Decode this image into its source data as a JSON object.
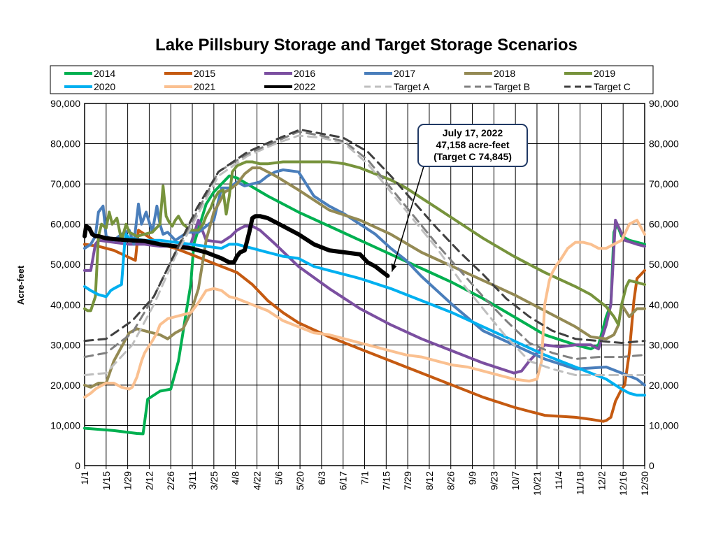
{
  "chart_data": {
    "type": "line",
    "title": "Lake Pillsbury Storage and Target Storage Scenarios",
    "ylabel": "Acre-feet",
    "xlabel": "",
    "ylim": [
      0,
      90000
    ],
    "y_ticks": [
      0,
      10000,
      20000,
      30000,
      40000,
      50000,
      60000,
      70000,
      80000,
      90000
    ],
    "y_tick_labels": [
      "0",
      "10,000",
      "20,000",
      "30,000",
      "40,000",
      "50,000",
      "60,000",
      "70,000",
      "80,000",
      "90,000"
    ],
    "x_unit": "day of year",
    "xlim": [
      1,
      365
    ],
    "x_ticks": [
      1,
      15,
      29,
      43,
      57,
      71,
      85,
      99,
      113,
      127,
      141,
      155,
      169,
      183,
      197,
      211,
      225,
      239,
      253,
      267,
      281,
      295,
      309,
      323,
      337,
      351,
      365
    ],
    "x_tick_labels": [
      "1/1",
      "1/15",
      "1/29",
      "2/12",
      "2/26",
      "3/11",
      "3/25",
      "4/8",
      "4/22",
      "5/6",
      "5/20",
      "6/3",
      "6/17",
      "7/1",
      "7/15",
      "7/29",
      "8/12",
      "8/26",
      "9/9",
      "9/23",
      "10/7",
      "10/21",
      "11/4",
      "11/18",
      "12/2",
      "12/16",
      "12/30"
    ],
    "grid": true,
    "legend_position": "top",
    "legend_columns": 6,
    "series": [
      {
        "name": "2014",
        "color": "#00b050",
        "dash": "solid",
        "width": 4,
        "x": [
          1,
          20,
          35,
          39,
          42,
          50,
          57,
          62,
          67,
          70,
          72,
          80,
          85,
          95,
          100,
          120,
          140,
          160,
          180,
          200,
          220,
          240,
          260,
          280,
          300,
          320,
          330,
          335,
          340,
          343,
          345,
          347,
          350,
          355,
          360,
          365
        ],
        "y": [
          9300,
          8700,
          8000,
          7900,
          16500,
          18500,
          19000,
          26000,
          38000,
          45000,
          55000,
          65000,
          68000,
          72000,
          71500,
          67000,
          63000,
          59500,
          56000,
          52500,
          49000,
          45500,
          41500,
          37000,
          32500,
          30000,
          29000,
          30000,
          37000,
          40000,
          58000,
          60000,
          57000,
          56000,
          55500,
          55000
        ]
      },
      {
        "name": "2015",
        "color": "#c55a11",
        "dash": "solid",
        "width": 4,
        "x": [
          1,
          10,
          20,
          34,
          36,
          50,
          60,
          70,
          80,
          90,
          100,
          110,
          120,
          130,
          140,
          160,
          180,
          200,
          220,
          240,
          260,
          280,
          300,
          320,
          330,
          338,
          340,
          343,
          346,
          350,
          352,
          355,
          358,
          360,
          365
        ],
        "y": [
          55000,
          54500,
          53500,
          51000,
          58500,
          55000,
          54000,
          52500,
          51000,
          49500,
          48000,
          45000,
          41000,
          38000,
          35500,
          32000,
          29000,
          26000,
          23000,
          20000,
          17000,
          14500,
          12500,
          12000,
          11500,
          11000,
          11200,
          12000,
          16000,
          19000,
          20000,
          28000,
          41000,
          46500,
          48500
        ]
      },
      {
        "name": "2016",
        "color": "#7b4fa0",
        "dash": "solid",
        "width": 4,
        "x": [
          1,
          5,
          8,
          10,
          20,
          30,
          40,
          50,
          60,
          70,
          75,
          80,
          90,
          96,
          100,
          105,
          110,
          115,
          125,
          140,
          160,
          180,
          200,
          220,
          240,
          260,
          280,
          285,
          290,
          300,
          310,
          320,
          330,
          335,
          340,
          343,
          346,
          352,
          360,
          365
        ],
        "y": [
          48500,
          48500,
          55000,
          56000,
          55500,
          55000,
          55000,
          54500,
          54500,
          55000,
          61000,
          56000,
          55500,
          57000,
          58500,
          59500,
          59500,
          58500,
          55000,
          49500,
          44000,
          39000,
          35000,
          31500,
          28500,
          25500,
          23000,
          23500,
          26000,
          30000,
          29500,
          30000,
          30000,
          29000,
          35000,
          40000,
          61000,
          56000,
          55000,
          54500
        ]
      },
      {
        "name": "2017",
        "color": "#4a7ebb",
        "dash": "solid",
        "width": 4,
        "x": [
          1,
          5,
          8,
          10,
          13,
          15,
          20,
          25,
          30,
          33,
          36,
          38,
          41,
          45,
          48,
          50,
          52,
          55,
          60,
          68,
          75,
          85,
          90,
          95,
          100,
          105,
          110,
          115,
          120,
          125,
          130,
          140,
          150,
          160,
          170,
          180,
          190,
          200,
          210,
          220,
          240,
          260,
          280,
          300,
          320,
          340,
          350,
          360,
          365
        ],
        "y": [
          54000,
          55000,
          57000,
          63000,
          64500,
          57000,
          56000,
          57500,
          58500,
          55000,
          65000,
          60000,
          63000,
          58000,
          64500,
          60000,
          57500,
          58000,
          56000,
          58000,
          58000,
          61000,
          69000,
          69000,
          70500,
          69500,
          70000,
          70500,
          72000,
          73000,
          73500,
          73000,
          67000,
          64500,
          62500,
          60000,
          57500,
          54000,
          51000,
          47000,
          40000,
          33500,
          30000,
          26500,
          24000,
          24500,
          23000,
          21500,
          20000
        ]
      },
      {
        "name": "2018",
        "color": "#948a54",
        "dash": "solid",
        "width": 4,
        "x": [
          1,
          5,
          10,
          15,
          20,
          25,
          30,
          35,
          40,
          45,
          50,
          55,
          60,
          65,
          70,
          75,
          80,
          85,
          88,
          92,
          95,
          100,
          105,
          110,
          115,
          125,
          140,
          160,
          180,
          200,
          220,
          240,
          260,
          280,
          300,
          320,
          330,
          340,
          345,
          348,
          350,
          355,
          360,
          365
        ],
        "y": [
          20000,
          19500,
          20500,
          20500,
          26000,
          29500,
          33000,
          34000,
          33500,
          33000,
          32500,
          31500,
          33000,
          34000,
          38000,
          44000,
          56000,
          63000,
          65000,
          68000,
          68500,
          70000,
          72500,
          74000,
          74000,
          72000,
          68500,
          63500,
          61000,
          57500,
          53000,
          49500,
          46000,
          42500,
          38500,
          34500,
          32000,
          31500,
          32500,
          35000,
          40000,
          37000,
          39000,
          39000
        ]
      },
      {
        "name": "2019",
        "color": "#77933c",
        "dash": "solid",
        "width": 4,
        "x": [
          1,
          3,
          5,
          8,
          10,
          12,
          15,
          17,
          19,
          22,
          25,
          28,
          30,
          35,
          40,
          45,
          50,
          52,
          54,
          56,
          58,
          60,
          62,
          65,
          70,
          75,
          78,
          80,
          83,
          85,
          88,
          91,
          93,
          95,
          97,
          100,
          103,
          106,
          110,
          115,
          120,
          130,
          140,
          150,
          160,
          170,
          180,
          190,
          200,
          210,
          220,
          230,
          240,
          260,
          280,
          300,
          320,
          330,
          340,
          345,
          348,
          350,
          353,
          355,
          360,
          365
        ],
        "y": [
          39000,
          38500,
          38500,
          42000,
          57000,
          60000,
          59000,
          63000,
          60000,
          61500,
          56000,
          60000,
          58000,
          57000,
          57500,
          58000,
          60000,
          69500,
          62000,
          60500,
          59500,
          61000,
          62000,
          60000,
          58500,
          58500,
          60000,
          62000,
          64000,
          66000,
          68000,
          68500,
          62500,
          67000,
          73000,
          74500,
          75000,
          75500,
          75500,
          75000,
          75000,
          75500,
          75500,
          75500,
          75500,
          75000,
          74000,
          72500,
          71000,
          69000,
          66500,
          64000,
          61500,
          56500,
          52000,
          48000,
          44500,
          42500,
          39500,
          37000,
          35000,
          40000,
          44500,
          46000,
          45500,
          45000
        ]
      },
      {
        "name": "2020",
        "color": "#00b0f0",
        "dash": "solid",
        "width": 4,
        "x": [
          1,
          5,
          10,
          15,
          18,
          20,
          25,
          27,
          28,
          30,
          40,
          50,
          60,
          70,
          80,
          90,
          95,
          100,
          110,
          120,
          130,
          140,
          150,
          160,
          180,
          200,
          220,
          240,
          260,
          280,
          300,
          320,
          340,
          350,
          355,
          360,
          365
        ],
        "y": [
          44500,
          43500,
          42500,
          42000,
          43500,
          44000,
          45000,
          55000,
          57500,
          56500,
          56000,
          56000,
          55500,
          55000,
          54500,
          54000,
          55000,
          55000,
          54000,
          53000,
          52000,
          51500,
          49500,
          48500,
          46500,
          44000,
          41000,
          38000,
          34500,
          31000,
          27500,
          24500,
          21500,
          19000,
          18000,
          17500,
          17500
        ]
      },
      {
        "name": "2021",
        "color": "#fac090",
        "dash": "solid",
        "width": 4,
        "x": [
          1,
          3,
          5,
          8,
          10,
          15,
          20,
          25,
          30,
          32,
          35,
          38,
          40,
          45,
          48,
          50,
          55,
          60,
          65,
          70,
          75,
          80,
          85,
          90,
          95,
          100,
          110,
          120,
          130,
          140,
          150,
          160,
          170,
          180,
          190,
          200,
          210,
          220,
          230,
          240,
          250,
          260,
          270,
          280,
          290,
          295,
          298,
          300,
          303,
          305,
          308,
          310,
          315,
          320,
          325,
          330,
          335,
          340,
          345,
          350,
          355,
          360,
          365
        ],
        "y": [
          17000,
          17500,
          18000,
          19000,
          19500,
          20500,
          20500,
          19500,
          19000,
          19500,
          22000,
          26000,
          28000,
          31000,
          33000,
          35000,
          36500,
          37000,
          37500,
          38000,
          40500,
          43500,
          44000,
          43500,
          42000,
          41500,
          40000,
          38500,
          36000,
          34500,
          33000,
          32500,
          31500,
          30500,
          29500,
          28500,
          27500,
          27000,
          26000,
          25000,
          24500,
          23500,
          22500,
          21500,
          21000,
          21500,
          26000,
          40000,
          46000,
          48000,
          50000,
          51000,
          54000,
          55500,
          55500,
          55000,
          54000,
          54000,
          55000,
          56000,
          60000,
          61000,
          57500
        ]
      },
      {
        "name": "2022",
        "color": "#000000",
        "dash": "solid",
        "width": 6,
        "x": [
          1,
          2,
          4,
          6,
          8,
          10,
          15,
          20,
          30,
          40,
          50,
          60,
          70,
          80,
          90,
          95,
          98,
          100,
          102,
          105,
          108,
          110,
          112,
          115,
          120,
          130,
          140,
          150,
          160,
          170,
          180,
          185,
          190,
          195,
          198
        ],
        "y": [
          57000,
          59500,
          59000,
          57500,
          57000,
          57000,
          56500,
          56300,
          56000,
          55800,
          55000,
          54500,
          54000,
          53000,
          51500,
          50500,
          50500,
          52000,
          53000,
          53500,
          58000,
          61500,
          62000,
          62000,
          61500,
          59500,
          57500,
          55000,
          53500,
          53000,
          52500,
          50500,
          49500,
          48000,
          47158
        ]
      },
      {
        "name": "Target A",
        "color": "#bfbfbf",
        "dash": "dash",
        "width": 3,
        "x": [
          1,
          15,
          32,
          46,
          60,
          74,
          88,
          107,
          125,
          140,
          155,
          170,
          185,
          200,
          215,
          230,
          245,
          260,
          275,
          290,
          305,
          320,
          335,
          350,
          365
        ],
        "y": [
          22500,
          23000,
          30000,
          40000,
          52000,
          62000,
          72000,
          77000,
          80000,
          82000,
          81500,
          80000,
          75000,
          68000,
          61000,
          54000,
          46000,
          39000,
          32000,
          26000,
          24000,
          22500,
          22500,
          22500,
          22500
        ]
      },
      {
        "name": "Target B",
        "color": "#808080",
        "dash": "dash",
        "width": 3,
        "x": [
          1,
          15,
          32,
          46,
          60,
          74,
          88,
          107,
          125,
          140,
          155,
          170,
          185,
          200,
          215,
          230,
          245,
          260,
          275,
          290,
          305,
          320,
          335,
          350,
          365
        ],
        "y": [
          27000,
          28000,
          33000,
          42000,
          53000,
          63000,
          73000,
          77500,
          80500,
          83000,
          82000,
          80500,
          76000,
          69000,
          62000,
          55000,
          48500,
          42000,
          36000,
          30500,
          28000,
          26500,
          27000,
          27000,
          27500
        ]
      },
      {
        "name": "Target C",
        "color": "#404040",
        "dash": "dash",
        "width": 3,
        "x": [
          1,
          15,
          32,
          46,
          60,
          74,
          88,
          107,
          125,
          141,
          155,
          169,
          185,
          200,
          215,
          230,
          245,
          260,
          275,
          290,
          305,
          320,
          335,
          350,
          365
        ],
        "y": [
          31000,
          31500,
          36000,
          42000,
          53000,
          64000,
          73000,
          78000,
          81000,
          83500,
          82500,
          81500,
          78000,
          72000,
          65500,
          59000,
          53000,
          47500,
          41500,
          37000,
          33500,
          31500,
          31000,
          30500,
          31000
        ]
      }
    ],
    "annotation": {
      "lines": [
        "July 17, 2022",
        "47,158 acre-feet",
        "(Target C 74,845)"
      ],
      "points_to": {
        "x": 198,
        "y": 47158
      }
    }
  }
}
